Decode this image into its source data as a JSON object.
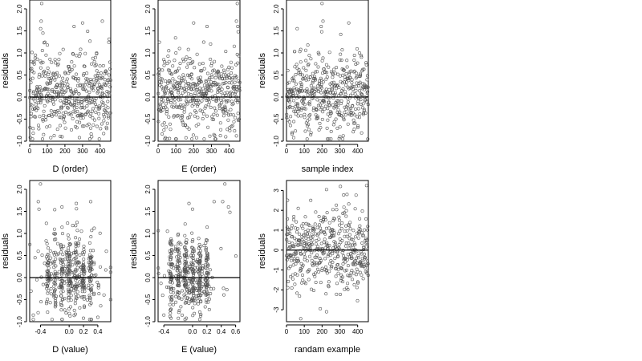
{
  "chart_data": [
    {
      "type": "scatter",
      "xlabel": "D (order)",
      "ylabel": "residuals",
      "xlim": [
        0,
        460
      ],
      "ylim": [
        -1.0,
        2.2
      ],
      "xticks": [
        0,
        100,
        200,
        300,
        400
      ],
      "yticks": [
        -1.0,
        -0.5,
        0.0,
        0.5,
        1.0,
        1.5,
        2.0
      ],
      "xticklabels": [
        "0",
        "100",
        "200",
        "300",
        "400"
      ],
      "yticklabels": [
        "-1.0",
        "-0.5",
        "0.0",
        "0.5",
        "1.0",
        "1.5",
        "2.0"
      ],
      "reference_line_y": 0,
      "n_points": 460,
      "point_color": "#555555",
      "dist": {
        "kind": "index",
        "sd": 0.45,
        "mean": 0.02,
        "outliers": [
          [
            68,
            2.12
          ],
          [
            65,
            1.72
          ],
          [
            62,
            1.55
          ],
          [
            75,
            1.45
          ],
          [
            100,
            1.18
          ],
          [
            412,
            1.72
          ],
          [
            300,
            1.68
          ],
          [
            252,
            1.6
          ],
          [
            190,
            1.08
          ],
          [
            380,
            0.98
          ],
          [
            120,
            -0.92
          ],
          [
            395,
            -0.95
          ],
          [
            20,
            -0.82
          ],
          [
            352,
            -0.9
          ]
        ]
      }
    },
    {
      "type": "scatter",
      "xlabel": "E (order)",
      "ylabel": "residuals",
      "xlim": [
        0,
        460
      ],
      "ylim": [
        -1.0,
        2.2
      ],
      "xticks": [
        0,
        100,
        200,
        300,
        400
      ],
      "yticks": [
        -1.0,
        -0.5,
        0.0,
        0.5,
        1.0,
        1.5,
        2.0
      ],
      "xticklabels": [
        "0",
        "100",
        "200",
        "300",
        "400"
      ],
      "yticklabels": [
        "-1.0",
        "-0.5",
        "0.0",
        "0.5",
        "1.0",
        "1.5",
        "2.0"
      ],
      "reference_line_y": 0,
      "n_points": 460,
      "point_color": "#555555",
      "dist": {
        "kind": "index",
        "sd": 0.45,
        "mean": 0.02,
        "outliers": [
          [
            445,
            2.12
          ],
          [
            440,
            1.72
          ],
          [
            448,
            1.6
          ],
          [
            450,
            1.48
          ],
          [
            200,
            1.68
          ],
          [
            275,
            1.6
          ],
          [
            120,
            1.1
          ],
          [
            60,
            1.05
          ],
          [
            100,
            1.0
          ],
          [
            40,
            -0.92
          ],
          [
            190,
            -0.95
          ],
          [
            380,
            -0.9
          ]
        ]
      }
    },
    {
      "type": "scatter",
      "xlabel": "sample index",
      "ylabel": "residuals",
      "xlim": [
        0,
        460
      ],
      "ylim": [
        -1.0,
        2.2
      ],
      "xticks": [
        0,
        100,
        200,
        300,
        400
      ],
      "yticks": [
        -1.0,
        -0.5,
        0.0,
        0.5,
        1.0,
        1.5,
        2.0
      ],
      "xticklabels": [
        "0",
        "100",
        "200",
        "300",
        "400"
      ],
      "yticklabels": [
        "-1.0",
        "-0.5",
        "0.0",
        "0.5",
        "1.0",
        "1.5",
        "2.0"
      ],
      "reference_line_y": 0,
      "n_points": 460,
      "point_color": "#555555",
      "dist": {
        "kind": "index",
        "sd": 0.45,
        "mean": 0.02,
        "outliers": [
          [
            200,
            2.12
          ],
          [
            205,
            1.72
          ],
          [
            195,
            1.6
          ],
          [
            198,
            1.48
          ],
          [
            350,
            1.68
          ],
          [
            60,
            1.55
          ],
          [
            305,
            1.42
          ],
          [
            120,
            1.18
          ],
          [
            80,
            1.08
          ],
          [
            410,
            1.0
          ],
          [
            40,
            -0.92
          ],
          [
            230,
            -0.95
          ],
          [
            300,
            -0.9
          ]
        ]
      }
    },
    {
      "type": "scatter",
      "xlabel": "D (value)",
      "ylabel": "residuals",
      "xlim": [
        -0.55,
        0.58
      ],
      "ylim": [
        -1.0,
        2.2
      ],
      "xticks": [
        -0.4,
        0.0,
        0.2,
        0.4
      ],
      "yticks": [
        -1.0,
        -0.5,
        0.0,
        0.5,
        1.0,
        1.5,
        2.0
      ],
      "xticklabels": [
        "-0.4",
        "0.0",
        "0.2",
        "0.4"
      ],
      "yticklabels": [
        "-1.0",
        "-0.5",
        "0.0",
        "0.5",
        "1.0",
        "1.5",
        "2.0"
      ],
      "reference_line_y": 0,
      "n_points": 460,
      "point_color": "#555555",
      "dist": {
        "kind": "value",
        "sd": 0.45,
        "mean": 0.02,
        "xcenter": 0.0,
        "xspread": 0.22,
        "groups": [
          -0.3,
          -0.2,
          -0.1,
          0.0,
          0.1,
          0.2,
          0.3
        ],
        "outliers": [
          [
            -0.4,
            2.12
          ],
          [
            -0.43,
            1.72
          ],
          [
            -0.42,
            1.55
          ],
          [
            -0.1,
            1.6
          ],
          [
            0.1,
            1.68
          ],
          [
            0.3,
            1.72
          ],
          [
            0.05,
            1.18
          ],
          [
            -0.5,
            -0.95
          ],
          [
            -0.5,
            -0.85
          ],
          [
            0.4,
            -0.9
          ],
          [
            0.2,
            -0.92
          ]
        ]
      }
    },
    {
      "type": "scatter",
      "xlabel": "E (value)",
      "ylabel": "residuals",
      "xlim": [
        -0.48,
        0.66
      ],
      "ylim": [
        -1.0,
        2.2
      ],
      "xticks": [
        -0.4,
        0.0,
        0.2,
        0.4,
        0.6
      ],
      "yticks": [
        -1.0,
        -0.5,
        0.0,
        0.5,
        1.0,
        1.5,
        2.0
      ],
      "xticklabels": [
        "-0.4",
        "0.0",
        "0.2",
        "0.4",
        "0.6"
      ],
      "yticklabels": [
        "-1.0",
        "-0.5",
        "0.0",
        "0.5",
        "1.0",
        "1.5",
        "2.0"
      ],
      "reference_line_y": 0,
      "n_points": 460,
      "point_color": "#555555",
      "dist": {
        "kind": "value",
        "sd": 0.45,
        "mean": 0.02,
        "xcenter": -0.05,
        "xspread": 0.2,
        "groups": [
          -0.3,
          -0.2,
          -0.1,
          0.0,
          0.1,
          0.2
        ],
        "outliers": [
          [
            0.45,
            2.12
          ],
          [
            0.5,
            1.6
          ],
          [
            0.52,
            1.48
          ],
          [
            0.3,
            1.72
          ],
          [
            0.42,
            1.72
          ],
          [
            -0.05,
            1.68
          ],
          [
            0.0,
            1.55
          ],
          [
            -0.35,
            1.05
          ],
          [
            -0.3,
            -0.92
          ],
          [
            0.1,
            -0.95
          ],
          [
            -0.4,
            -0.85
          ]
        ]
      }
    },
    {
      "type": "scatter",
      "xlabel": "randam example",
      "ylabel": "residuals",
      "xlim": [
        0,
        460
      ],
      "ylim": [
        -3.6,
        3.5
      ],
      "xticks": [
        0,
        100,
        200,
        300,
        400
      ],
      "yticks": [
        -3,
        -2,
        -1,
        0,
        1,
        2,
        3
      ],
      "xticklabels": [
        "0",
        "100",
        "200",
        "300",
        "400"
      ],
      "yticklabels": [
        "-3",
        "-2",
        "-1",
        "0",
        "1",
        "2",
        "3"
      ],
      "reference_line_y": 0,
      "n_points": 460,
      "point_color": "#555555",
      "dist": {
        "kind": "normal",
        "sd": 1.0,
        "mean": 0.0,
        "outliers": [
          [
            450,
            3.25
          ],
          [
            225,
            3.05
          ],
          [
            80,
            -3.45
          ],
          [
            225,
            -3.1
          ],
          [
            190,
            -2.95
          ],
          [
            340,
            2.8
          ]
        ]
      }
    }
  ]
}
